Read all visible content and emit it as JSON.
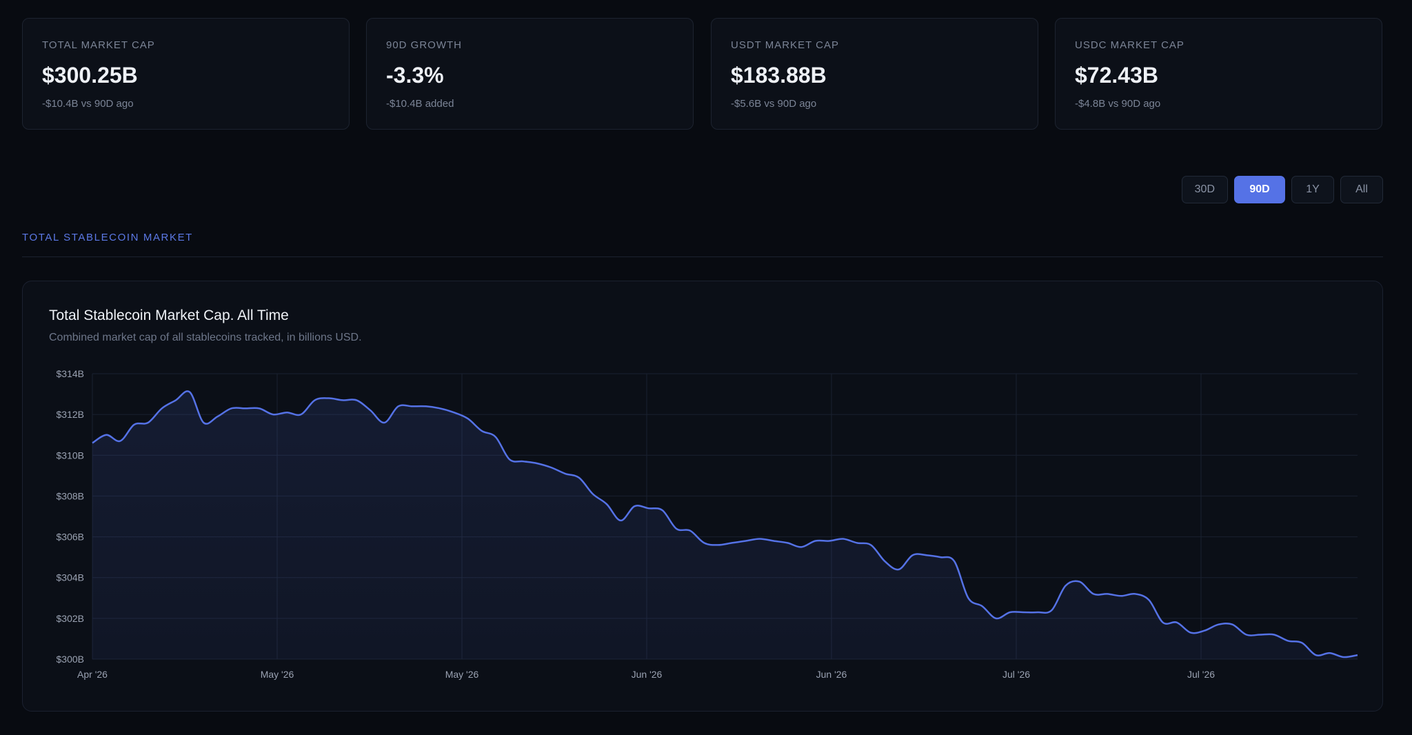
{
  "stats": [
    {
      "label": "TOTAL MARKET CAP",
      "value": "$300.25B",
      "sub": "-$10.4B vs 90D ago"
    },
    {
      "label": "90D GROWTH",
      "value": "-3.3%",
      "sub": "-$10.4B added"
    },
    {
      "label": "USDT MARKET CAP",
      "value": "$183.88B",
      "sub": "-$5.6B vs 90D ago"
    },
    {
      "label": "USDC MARKET CAP",
      "value": "$72.43B",
      "sub": "-$4.8B vs 90D ago"
    }
  ],
  "range_selector": {
    "options": [
      "30D",
      "90D",
      "1Y",
      "All"
    ],
    "selected": "90D"
  },
  "section": {
    "title": "TOTAL STABLECOIN MARKET"
  },
  "chart_card": {
    "title": "Total Stablecoin Market Cap. All Time",
    "subtitle": "Combined market cap of all stablecoins tracked, in billions USD."
  },
  "colors": {
    "accent": "#5572e6",
    "line": "#5572e6",
    "background": "#080b11"
  },
  "chart_data": {
    "type": "area",
    "title": "Total Stablecoin Market Cap. All Time",
    "ylabel": "",
    "xlabel": "",
    "ylim": [
      300,
      314
    ],
    "y_ticks": [
      "$300B",
      "$302B",
      "$304B",
      "$306B",
      "$308B",
      "$310B",
      "$312B",
      "$314B"
    ],
    "x_ticks": [
      "Apr '26",
      "May '26",
      "May '26",
      "Jun '26",
      "Jun '26",
      "Jul '26",
      "Jul '26"
    ],
    "grid": true,
    "series": [
      {
        "values": [
          310.6,
          311.0,
          310.7,
          311.5,
          311.6,
          312.3,
          312.7,
          313.1,
          311.6,
          311.9,
          312.3,
          312.3,
          312.3,
          312.0,
          312.1,
          312.0,
          312.7,
          312.8,
          312.7,
          312.7,
          312.2,
          311.6,
          312.4,
          312.4,
          312.4,
          312.3,
          312.1,
          311.8,
          311.2,
          310.9,
          309.8,
          309.7,
          309.6,
          309.4,
          309.1,
          308.9,
          308.1,
          307.6,
          306.8,
          307.5,
          307.4,
          307.3,
          306.4,
          306.3,
          305.7,
          305.6,
          305.7,
          305.8,
          305.9,
          305.8,
          305.7,
          305.5,
          305.8,
          305.8,
          305.9,
          305.7,
          305.6,
          304.8,
          304.4,
          305.1,
          305.1,
          305.0,
          304.8,
          303.0,
          302.6,
          302.0,
          302.3,
          302.3,
          302.3,
          302.4,
          303.6,
          303.8,
          303.2,
          303.2,
          303.1,
          303.2,
          302.9,
          301.8,
          301.8,
          301.3,
          301.4,
          301.7,
          301.7,
          301.2,
          301.2,
          301.2,
          300.9,
          300.8,
          300.2,
          300.3,
          300.1,
          300.2
        ]
      }
    ]
  }
}
